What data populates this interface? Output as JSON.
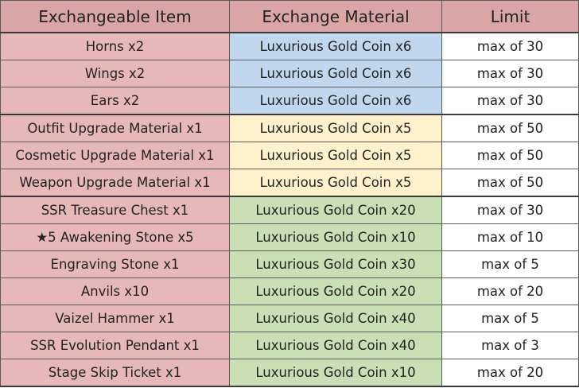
{
  "headers": {
    "item": "Exchangeable Item",
    "material": "Exchange Material",
    "limit": "Limit"
  },
  "colors": {
    "header_bg": "#d9a6a5",
    "item_bg": "#e6b8b7",
    "blue": "#c0d7ee",
    "yellow": "#fff1cc",
    "green": "#c9dfb5",
    "limit_bg": "#ffffff"
  },
  "rows": [
    {
      "item": "Horns x2",
      "material": "Luxurious Gold Coin x6",
      "limit": "max of 30",
      "tier": "blue"
    },
    {
      "item": "Wings x2",
      "material": "Luxurious Gold Coin x6",
      "limit": "max of 30",
      "tier": "blue"
    },
    {
      "item": "Ears x2",
      "material": "Luxurious Gold Coin x6",
      "limit": "max of 30",
      "tier": "blue"
    },
    {
      "item": "Outfit Upgrade Material x1",
      "material": "Luxurious Gold Coin x5",
      "limit": "max of 50",
      "tier": "yellow"
    },
    {
      "item": "Cosmetic Upgrade Material x1",
      "material": "Luxurious Gold Coin x5",
      "limit": "max of 50",
      "tier": "yellow"
    },
    {
      "item": "Weapon Upgrade Material x1",
      "material": "Luxurious Gold Coin x5",
      "limit": "max of 50",
      "tier": "yellow"
    },
    {
      "item": "SSR Treasure Chest x1",
      "material": "Luxurious Gold Coin x20",
      "limit": "max of 30",
      "tier": "green"
    },
    {
      "item": "★5 Awakening Stone x5",
      "material": "Luxurious Gold Coin x10",
      "limit": "max of 10",
      "tier": "green"
    },
    {
      "item": "Engraving Stone x1",
      "material": "Luxurious Gold Coin x30",
      "limit": "max of 5",
      "tier": "green"
    },
    {
      "item": "Anvils x10",
      "material": "Luxurious Gold Coin x20",
      "limit": "max of 20",
      "tier": "green"
    },
    {
      "item": "Vaizel Hammer x1",
      "material": "Luxurious Gold Coin x40",
      "limit": "max of 5",
      "tier": "green"
    },
    {
      "item": "SSR Evolution Pendant x1",
      "material": "Luxurious Gold Coin x40",
      "limit": "max of 3",
      "tier": "green"
    },
    {
      "item": "Stage Skip Ticket x1",
      "material": "Luxurious Gold Coin x10",
      "limit": "max of 20",
      "tier": "green"
    }
  ]
}
